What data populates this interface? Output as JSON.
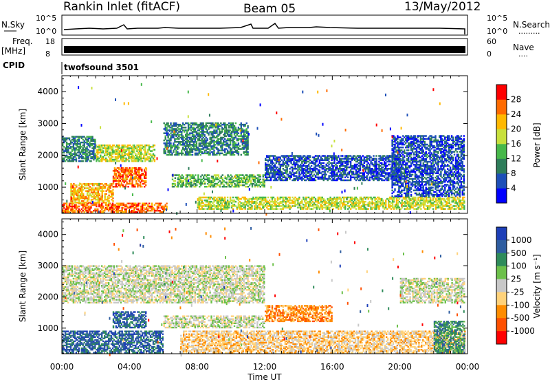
{
  "header": {
    "station": "Rankin Inlet (fitACF)",
    "beam": "Beam 05",
    "date": "13/May/2012"
  },
  "nsky_panel": {
    "left_label": "N.Sky",
    "right_label": "N.Search",
    "right_marker": ".........",
    "ticks_left": [
      "10^5",
      "10^0"
    ],
    "ticks_right": [
      "10^5",
      "10^0"
    ]
  },
  "freq_panel": {
    "left_label_1": "Freq.",
    "left_label_2": "[MHz]",
    "right_label": "Nave",
    "right_marker": "....",
    "ticks_left": [
      "18",
      "8"
    ],
    "ticks_right": [
      "60",
      "0"
    ]
  },
  "cpid": {
    "label": "CPID",
    "value": "twofsound 3501"
  },
  "chart_data": [
    {
      "type": "heatmap",
      "title": "",
      "ylabel": "Slant Range [km]",
      "xlabel": "",
      "x_range_hours": [
        0,
        24
      ],
      "ylim": [
        180,
        4500
      ],
      "y_ticks": [
        "1000",
        "2000",
        "3000",
        "4000"
      ],
      "colorbar": {
        "label": "Power [dB]",
        "ticks": [
          "4",
          "8",
          "12",
          "16",
          "20",
          "24",
          "28"
        ],
        "colors": [
          "#0000ff",
          "#1d4fb8",
          "#2e7d5a",
          "#47b84a",
          "#c8e03c",
          "#ffb800",
          "#ff6a00",
          "#ff0000"
        ]
      },
      "echo_regions": [
        {
          "t0": 0.0,
          "t1": 6.2,
          "r0": 200,
          "r1": 500,
          "level": "28"
        },
        {
          "t0": 0.5,
          "t1": 3.0,
          "r0": 500,
          "r1": 1100,
          "level": "24"
        },
        {
          "t0": 3.0,
          "t1": 5.0,
          "r0": 1000,
          "r1": 1600,
          "level": "28"
        },
        {
          "t0": 2.0,
          "t1": 5.5,
          "r0": 1800,
          "r1": 2300,
          "level": "20"
        },
        {
          "t0": 0.0,
          "t1": 2.0,
          "r0": 1800,
          "r1": 2600,
          "level": "12"
        },
        {
          "t0": 6.0,
          "t1": 11.0,
          "r0": 2000,
          "r1": 3000,
          "level": "12"
        },
        {
          "t0": 6.5,
          "t1": 12.0,
          "r0": 1000,
          "r1": 1400,
          "level": "16"
        },
        {
          "t0": 12.0,
          "t1": 20.0,
          "r0": 1200,
          "r1": 2000,
          "level": "8"
        },
        {
          "t0": 8.0,
          "t1": 23.8,
          "r0": 300,
          "r1": 700,
          "level": "20"
        },
        {
          "t0": 19.5,
          "t1": 23.8,
          "r0": 700,
          "r1": 2600,
          "level": "8"
        }
      ]
    },
    {
      "type": "heatmap",
      "title": "",
      "ylabel": "Slant Range [km]",
      "xlabel": "Time UT",
      "x_ticks": [
        "00:00",
        "04:00",
        "08:00",
        "12:00",
        "16:00",
        "20:00",
        "00:00"
      ],
      "x_range_hours": [
        0,
        24
      ],
      "ylim": [
        180,
        4500
      ],
      "y_ticks": [
        "1000",
        "2000",
        "3000",
        "4000"
      ],
      "colorbar": {
        "label": "Velocity [m s⁻¹]",
        "ticks": [
          "1000",
          "500",
          "100",
          "25",
          "-25",
          "-100",
          "-500",
          "-1000"
        ],
        "colors": [
          "#1d3fb8",
          "#2e5da0",
          "#2e8b5a",
          "#6cc04a",
          "#c8c8c8",
          "#ffd27a",
          "#ff8c00",
          "#ff5000",
          "#ff0000"
        ]
      },
      "echo_regions": [
        {
          "t0": 0.0,
          "t1": 6.0,
          "r0": 200,
          "r1": 900,
          "level": "500"
        },
        {
          "t0": 3.0,
          "t1": 5.0,
          "r0": 1000,
          "r1": 1500,
          "level": "500"
        },
        {
          "t0": 0.0,
          "t1": 12.0,
          "r0": 1800,
          "r1": 3000,
          "level": "-25"
        },
        {
          "t0": 6.0,
          "t1": 12.0,
          "r0": 1000,
          "r1": 1400,
          "level": "-25"
        },
        {
          "t0": 7.0,
          "t1": 23.8,
          "r0": 200,
          "r1": 900,
          "level": "-100"
        },
        {
          "t0": 12.0,
          "t1": 16.0,
          "r0": 1200,
          "r1": 1700,
          "level": "-500"
        },
        {
          "t0": 20.0,
          "t1": 23.8,
          "r0": 1800,
          "r1": 2600,
          "level": "-25"
        },
        {
          "t0": 22.0,
          "t1": 23.8,
          "r0": 200,
          "r1": 1200,
          "level": "100"
        }
      ]
    }
  ]
}
